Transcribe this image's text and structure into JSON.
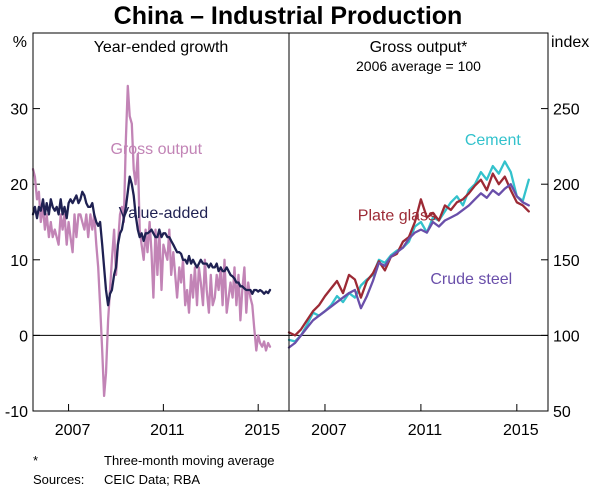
{
  "chart_data": {
    "type": "line",
    "title": "China – Industrial Production",
    "footnote_marker": "*",
    "footnote": "Three-month moving average",
    "sources_label": "Sources:",
    "sources": "CEIC Data; RBA",
    "panels": [
      {
        "title": "Year-ended growth",
        "subtitle": "",
        "unit": "%",
        "y_axis_side": "left",
        "ylim": [
          -10,
          40
        ],
        "yticks": [
          -10,
          0,
          10,
          20,
          30
        ],
        "xlim": [
          2005.5,
          2016.3
        ],
        "xticks": [
          2007,
          2011,
          2015
        ],
        "series": [
          {
            "name": "Gross output",
            "color": "#c284b6",
            "label_color": "#c284b6",
            "x": [
              2005.5,
              2005.58,
              2005.67,
              2005.75,
              2005.83,
              2005.92,
              2006.0,
              2006.08,
              2006.17,
              2006.25,
              2006.33,
              2006.42,
              2006.5,
              2006.58,
              2006.67,
              2006.75,
              2006.83,
              2006.92,
              2007.0,
              2007.08,
              2007.17,
              2007.25,
              2007.33,
              2007.42,
              2007.5,
              2007.58,
              2007.67,
              2007.75,
              2007.83,
              2007.92,
              2008.0,
              2008.08,
              2008.17,
              2008.25,
              2008.33,
              2008.42,
              2008.5,
              2008.58,
              2008.67,
              2008.75,
              2008.83,
              2008.92,
              2009.0,
              2009.08,
              2009.17,
              2009.25,
              2009.33,
              2009.42,
              2009.5,
              2009.58,
              2009.67,
              2009.75,
              2009.83,
              2009.92,
              2010.0,
              2010.08,
              2010.17,
              2010.25,
              2010.33,
              2010.42,
              2010.5,
              2010.58,
              2010.67,
              2010.75,
              2010.83,
              2010.92,
              2011.0,
              2011.08,
              2011.17,
              2011.25,
              2011.33,
              2011.42,
              2011.5,
              2011.58,
              2011.67,
              2011.75,
              2011.83,
              2011.92,
              2012.0,
              2012.08,
              2012.17,
              2012.25,
              2012.33,
              2012.42,
              2012.5,
              2012.58,
              2012.67,
              2012.75,
              2012.83,
              2012.92,
              2013.0,
              2013.08,
              2013.17,
              2013.25,
              2013.33,
              2013.42,
              2013.5,
              2013.58,
              2013.67,
              2013.75,
              2013.83,
              2013.92,
              2014.0,
              2014.08,
              2014.17,
              2014.25,
              2014.33,
              2014.42,
              2014.5,
              2014.58,
              2014.67,
              2014.75,
              2014.83,
              2014.92,
              2015.0,
              2015.08,
              2015.17,
              2015.25,
              2015.33,
              2015.42,
              2015.5
            ],
            "values": [
              22,
              21,
              18,
              19,
              15,
              17,
              14,
              16,
              13,
              15,
              13,
              14,
              13,
              12,
              16,
              14,
              16,
              12,
              15,
              13,
              11,
              16,
              13,
              16,
              16,
              15,
              14,
              16,
              13,
              16,
              14,
              16,
              12,
              9,
              4,
              -2,
              -8,
              -5,
              2,
              6,
              10,
              14,
              8,
              12,
              16,
              17,
              15,
              26,
              33,
              29,
              28,
              22,
              20,
              24,
              14,
              12,
              10,
              14,
              11,
              15,
              11,
              5,
              14,
              8,
              14,
              6,
              12,
              11,
              10,
              14,
              8,
              11,
              8,
              5,
              9,
              7,
              10,
              4,
              6,
              3,
              8,
              5,
              9,
              4,
              9,
              7,
              4,
              10,
              6,
              3,
              8,
              4,
              5,
              8,
              6,
              9,
              4,
              10,
              3,
              5,
              7,
              5,
              9,
              4,
              8,
              2,
              6,
              9,
              3,
              7,
              5,
              4,
              1,
              -2,
              0,
              -1,
              -1.5,
              -0.8,
              -2,
              -1,
              -1.5
            ]
          },
          {
            "name": "Value-added",
            "color": "#1f2152",
            "label_color": "#1f2152",
            "x": [
              2005.5,
              2005.58,
              2005.67,
              2005.75,
              2005.83,
              2005.92,
              2006.0,
              2006.08,
              2006.17,
              2006.25,
              2006.33,
              2006.42,
              2006.5,
              2006.58,
              2006.67,
              2006.75,
              2006.83,
              2006.92,
              2007.0,
              2007.08,
              2007.17,
              2007.25,
              2007.33,
              2007.42,
              2007.5,
              2007.58,
              2007.67,
              2007.75,
              2007.83,
              2007.92,
              2008.0,
              2008.08,
              2008.17,
              2008.25,
              2008.33,
              2008.42,
              2008.5,
              2008.58,
              2008.67,
              2008.75,
              2008.83,
              2008.92,
              2009.0,
              2009.08,
              2009.17,
              2009.25,
              2009.33,
              2009.42,
              2009.5,
              2009.58,
              2009.67,
              2009.75,
              2009.83,
              2009.92,
              2010.0,
              2010.08,
              2010.17,
              2010.25,
              2010.33,
              2010.42,
              2010.5,
              2010.58,
              2010.67,
              2010.75,
              2010.83,
              2010.92,
              2011.0,
              2011.08,
              2011.17,
              2011.25,
              2011.33,
              2011.42,
              2011.5,
              2011.58,
              2011.67,
              2011.75,
              2011.83,
              2011.92,
              2012.0,
              2012.08,
              2012.17,
              2012.25,
              2012.33,
              2012.42,
              2012.5,
              2012.58,
              2012.67,
              2012.75,
              2012.83,
              2012.92,
              2013.0,
              2013.08,
              2013.17,
              2013.25,
              2013.33,
              2013.42,
              2013.5,
              2013.58,
              2013.67,
              2013.75,
              2013.83,
              2013.92,
              2014.0,
              2014.08,
              2014.17,
              2014.25,
              2014.33,
              2014.42,
              2014.5,
              2014.58,
              2014.67,
              2014.75,
              2014.83,
              2014.92,
              2015.0,
              2015.08,
              2015.17,
              2015.25,
              2015.33,
              2015.42,
              2015.5
            ],
            "values": [
              16,
              17,
              15.5,
              17,
              16.5,
              18,
              16,
              17.5,
              16,
              18,
              17,
              16.5,
              17,
              16,
              18,
              16,
              17,
              15.5,
              17.5,
              18,
              17.5,
              18,
              18.5,
              17.5,
              18,
              19,
              18.5,
              17.5,
              17,
              17,
              17.5,
              16,
              15,
              14.5,
              15,
              12,
              9,
              6,
              4,
              5.5,
              6,
              8,
              9,
              12,
              13.5,
              14,
              15.5,
              17,
              19,
              21,
              20,
              18.5,
              16,
              14,
              13,
              13.5,
              12.5,
              13.5,
              13.5,
              13.7,
              14,
              13.5,
              13,
              13,
              14,
              13,
              13.5,
              13.5,
              13,
              13,
              12.5,
              12,
              11.5,
              11,
              11,
              10.8,
              10,
              10,
              9.5,
              10.5,
              9.5,
              10,
              9.5,
              9,
              9.5,
              10,
              9.5,
              9.5,
              9.5,
              9,
              9.5,
              9,
              9,
              9.5,
              8.5,
              9,
              8.5,
              8.5,
              9,
              8.5,
              8,
              7.8,
              7.5,
              7,
              7,
              6.5,
              6.5,
              6.2,
              6,
              6,
              6,
              5.5,
              6,
              6,
              5.8,
              6,
              5.8,
              5.5,
              5.8,
              5.6,
              6
            ]
          }
        ],
        "labels": [
          {
            "text": "Gross output",
            "for": "Gross output",
            "x": 2010.7,
            "y": 24
          },
          {
            "text": "Value-added",
            "for": "Value-added",
            "x": 2011.0,
            "y": 15.5
          }
        ]
      },
      {
        "title": "Gross output*",
        "subtitle": "2006 average = 100",
        "unit": "index",
        "y_axis_side": "right",
        "ylim": [
          50,
          300
        ],
        "yticks": [
          50,
          100,
          150,
          200,
          250
        ],
        "xlim": [
          2005.5,
          2016.3
        ],
        "xticks": [
          2007,
          2011,
          2015
        ],
        "series": [
          {
            "name": "Cement",
            "color": "#33c2cc",
            "label_color": "#33c2cc",
            "x": [
              2005.5,
              2005.75,
              2006.0,
              2006.25,
              2006.5,
              2006.75,
              2007.0,
              2007.25,
              2007.5,
              2007.75,
              2008.0,
              2008.25,
              2008.5,
              2008.75,
              2009.0,
              2009.25,
              2009.5,
              2009.75,
              2010.0,
              2010.25,
              2010.5,
              2010.75,
              2011.0,
              2011.25,
              2011.5,
              2011.75,
              2012.0,
              2012.25,
              2012.5,
              2012.75,
              2013.0,
              2013.25,
              2013.5,
              2013.75,
              2014.0,
              2014.25,
              2014.5,
              2014.75,
              2015.0,
              2015.25,
              2015.5
            ],
            "values": [
              97,
              96,
              100,
              107,
              115,
              113,
              116,
              120,
              126,
              122,
              128,
              125,
              133,
              137,
              140,
              150,
              148,
              153,
              156,
              158,
              162,
              172,
              175,
              168,
              178,
              176,
              182,
              188,
              192,
              186,
              196,
              200,
              208,
              203,
              212,
              207,
              215,
              208,
              192,
              189,
              203
            ]
          },
          {
            "name": "Plate glass",
            "color": "#9c2a35",
            "label_color": "#9c2a35",
            "x": [
              2005.5,
              2005.75,
              2006.0,
              2006.25,
              2006.5,
              2006.75,
              2007.0,
              2007.25,
              2007.5,
              2007.75,
              2008.0,
              2008.25,
              2008.5,
              2008.75,
              2009.0,
              2009.25,
              2009.5,
              2009.75,
              2010.0,
              2010.25,
              2010.5,
              2010.75,
              2011.0,
              2011.25,
              2011.5,
              2011.75,
              2012.0,
              2012.25,
              2012.5,
              2012.75,
              2013.0,
              2013.25,
              2013.5,
              2013.75,
              2014.0,
              2014.25,
              2014.5,
              2014.75,
              2015.0,
              2015.25,
              2015.5
            ],
            "values": [
              102,
              100,
              104,
              110,
              116,
              120,
              126,
              131,
              136,
              128,
              140,
              137,
              125,
              136,
              141,
              149,
              143,
              152,
              154,
              162,
              165,
              175,
              190,
              178,
              181,
              176,
              186,
              183,
              188,
              190,
              194,
              199,
              203,
              196,
              207,
              200,
              205,
              196,
              188,
              186,
              182
            ]
          },
          {
            "name": "Crude steel",
            "color": "#6a4faa",
            "label_color": "#6a4faa",
            "x": [
              2005.5,
              2005.75,
              2006.0,
              2006.25,
              2006.5,
              2006.75,
              2007.0,
              2007.25,
              2007.5,
              2007.75,
              2008.0,
              2008.25,
              2008.5,
              2008.75,
              2009.0,
              2009.25,
              2009.5,
              2009.75,
              2010.0,
              2010.25,
              2010.5,
              2010.75,
              2011.0,
              2011.25,
              2011.5,
              2011.75,
              2012.0,
              2012.25,
              2012.5,
              2012.75,
              2013.0,
              2013.25,
              2013.5,
              2013.75,
              2014.0,
              2014.25,
              2014.5,
              2014.75,
              2015.0,
              2015.25,
              2015.5
            ],
            "values": [
              92,
              95,
              100,
              105,
              110,
              113,
              116,
              119,
              122,
              125,
              128,
              130,
              118,
              126,
              136,
              148,
              146,
              152,
              155,
              158,
              164,
              168,
              170,
              168,
              175,
              172,
              176,
              178,
              180,
              183,
              186,
              190,
              194,
              191,
              196,
              193,
              197,
              200,
              192,
              188,
              186
            ]
          }
        ],
        "labels": [
          {
            "text": "Cement",
            "for": "Cement",
            "x": 2014.0,
            "y": 226
          },
          {
            "text": "Plate glass",
            "for": "Plate glass",
            "x": 2010.0,
            "y": 176
          },
          {
            "text": "Crude steel",
            "for": "Crude steel",
            "x": 2013.1,
            "y": 134
          }
        ]
      }
    ]
  }
}
